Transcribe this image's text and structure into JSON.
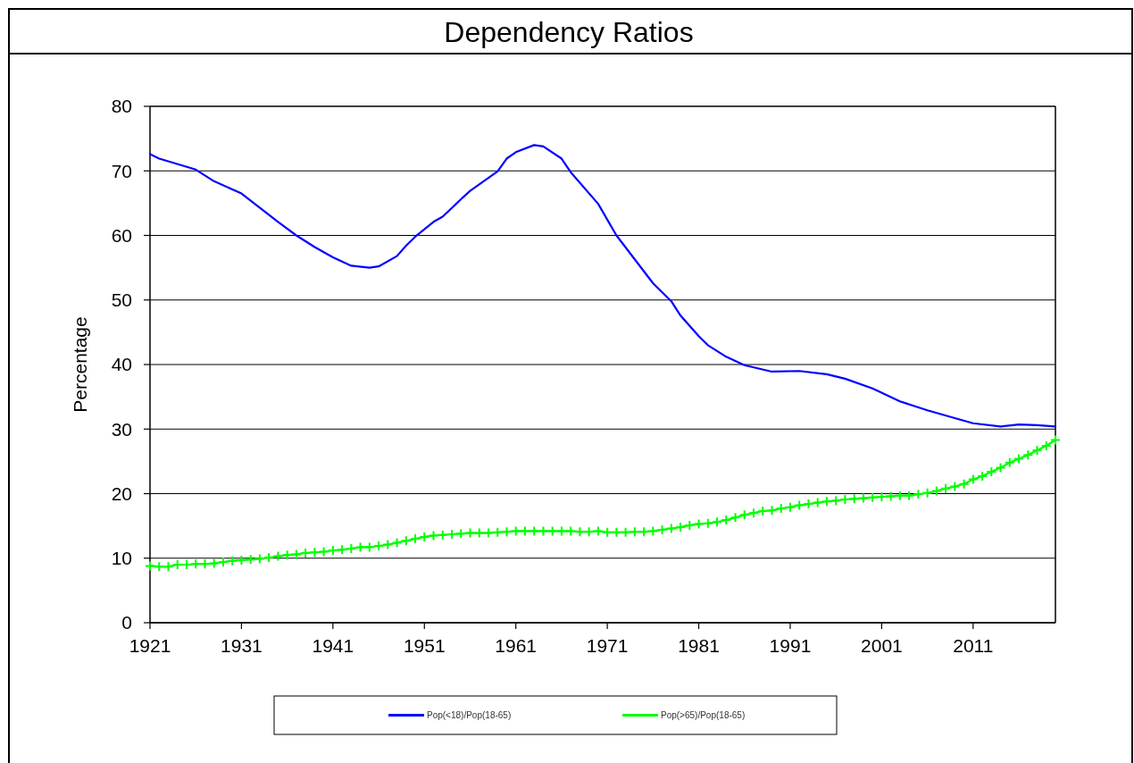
{
  "chart_data": {
    "type": "line",
    "title": "Dependency Ratios",
    "ylabel": "Percentage",
    "xlim": [
      1921,
      2020
    ],
    "xticks": [
      1921,
      1931,
      1941,
      1951,
      1961,
      1971,
      1981,
      1991,
      2001,
      2011
    ],
    "ylim": [
      0,
      80
    ],
    "yticks": [
      0,
      10,
      20,
      30,
      40,
      50,
      60,
      70,
      80
    ],
    "grid": "y",
    "legend": "bottom",
    "series": [
      {
        "name": "Pop(<18)/Pop(18-65)",
        "color": "#0000ff",
        "marker": "none",
        "x": [
          1921,
          1922,
          1926,
          1928,
          1931,
          1935,
          1937,
          1939,
          1941,
          1943,
          1945,
          1946,
          1948,
          1949,
          1950,
          1952,
          1953,
          1955,
          1956,
          1959,
          1960,
          1961,
          1963,
          1964,
          1966,
          1967,
          1970,
          1972,
          1974,
          1976,
          1978,
          1979,
          1981,
          1982,
          1984,
          1986,
          1989,
          1992,
          1995,
          1997,
          2000,
          2003,
          2006,
          2009,
          2011,
          2014,
          2016,
          2018,
          2020
        ],
        "values": [
          72.6,
          71.9,
          70.2,
          68.4,
          66.5,
          62.1,
          60,
          58.2,
          56.6,
          55.3,
          55.0,
          55.2,
          56.8,
          58.4,
          59.8,
          62.1,
          62.9,
          65.6,
          66.9,
          69.9,
          71.9,
          72.9,
          74.0,
          73.8,
          71.9,
          69.8,
          64.9,
          60.0,
          56.3,
          52.6,
          49.8,
          47.6,
          44.4,
          43.0,
          41.2,
          39.9,
          38.9,
          39.0,
          38.5,
          37.8,
          36.3,
          34.3,
          32.9,
          31.7,
          30.9,
          30.4,
          30.7,
          30.6,
          30.4
        ]
      },
      {
        "name": "Pop(>65)/Pop(18-65)",
        "color": "#00ff00",
        "marker": "cross",
        "x": [
          1921,
          1922,
          1923,
          1924,
          1925,
          1926,
          1927,
          1928,
          1929,
          1930,
          1931,
          1932,
          1933,
          1934,
          1935,
          1936,
          1937,
          1938,
          1939,
          1940,
          1941,
          1942,
          1943,
          1944,
          1945,
          1946,
          1947,
          1948,
          1949,
          1950,
          1951,
          1952,
          1953,
          1954,
          1955,
          1956,
          1957,
          1958,
          1959,
          1960,
          1961,
          1962,
          1963,
          1964,
          1965,
          1966,
          1967,
          1968,
          1969,
          1970,
          1971,
          1972,
          1973,
          1974,
          1975,
          1976,
          1977,
          1978,
          1979,
          1980,
          1981,
          1982,
          1983,
          1984,
          1985,
          1986,
          1987,
          1988,
          1989,
          1990,
          1991,
          1992,
          1993,
          1994,
          1995,
          1996,
          1997,
          1998,
          1999,
          2000,
          2001,
          2002,
          2003,
          2004,
          2005,
          2006,
          2007,
          2008,
          2009,
          2010,
          2011,
          2012,
          2013,
          2014,
          2015,
          2016,
          2017,
          2018,
          2019,
          2020
        ],
        "values": [
          8.8,
          8.7,
          8.7,
          9.0,
          9.0,
          9.1,
          9.1,
          9.2,
          9.4,
          9.6,
          9.7,
          9.8,
          9.9,
          10.1,
          10.3,
          10.5,
          10.6,
          10.8,
          10.9,
          11.0,
          11.2,
          11.3,
          11.5,
          11.7,
          11.7,
          11.9,
          12.1,
          12.4,
          12.7,
          13.0,
          13.3,
          13.5,
          13.6,
          13.7,
          13.8,
          13.9,
          13.9,
          13.9,
          14.0,
          14.1,
          14.2,
          14.2,
          14.2,
          14.2,
          14.2,
          14.2,
          14.2,
          14.1,
          14.1,
          14.2,
          14.0,
          14.0,
          14.0,
          14.1,
          14.1,
          14.2,
          14.4,
          14.6,
          14.8,
          15.1,
          15.3,
          15.4,
          15.6,
          15.9,
          16.3,
          16.7,
          17.0,
          17.3,
          17.4,
          17.7,
          17.9,
          18.2,
          18.4,
          18.6,
          18.8,
          18.9,
          19.1,
          19.2,
          19.3,
          19.4,
          19.5,
          19.6,
          19.7,
          19.7,
          19.9,
          20.1,
          20.4,
          20.8,
          21.1,
          21.5,
          22.2,
          22.7,
          23.4,
          24.0,
          24.8,
          25.4,
          26.0,
          26.7,
          27.4,
          28.3
        ]
      }
    ]
  }
}
